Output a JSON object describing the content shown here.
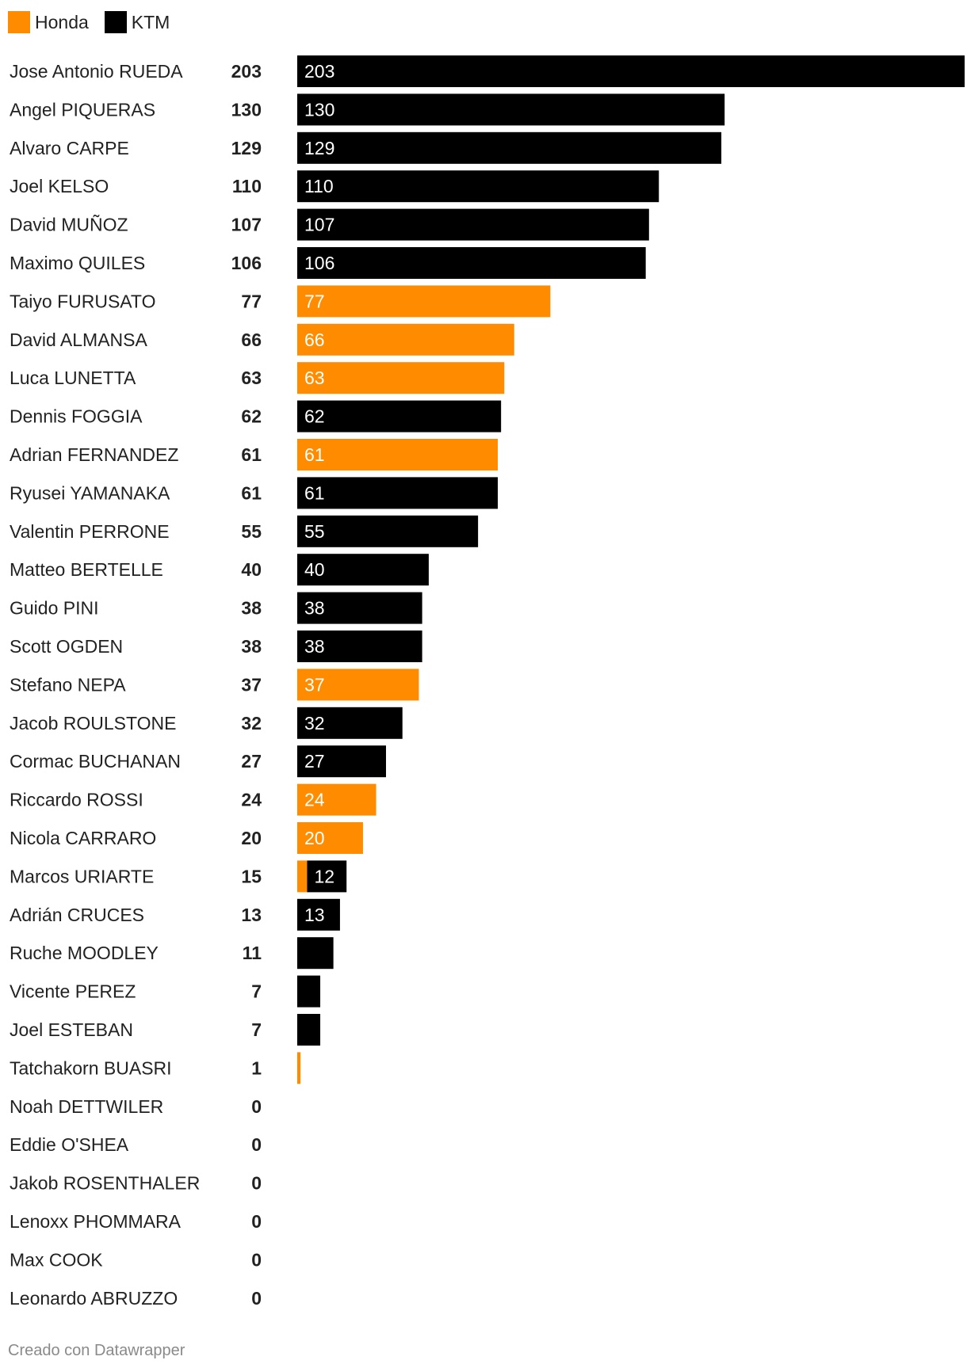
{
  "legend": [
    {
      "name": "Honda",
      "color": "#ff8c00"
    },
    {
      "name": "KTM",
      "color": "#000000"
    }
  ],
  "chart_data": {
    "type": "bar",
    "orientation": "horizontal",
    "stacked": true,
    "grid": false,
    "xlim": [
      0,
      203
    ],
    "series": [
      {
        "name": "Honda",
        "color": "#ff8c00"
      },
      {
        "name": "KTM",
        "color": "#000000"
      }
    ],
    "rows": [
      {
        "name": "Jose Antonio RUEDA",
        "total": "203",
        "segments": [
          {
            "series": "KTM",
            "value": 203,
            "label": "203"
          }
        ]
      },
      {
        "name": "Angel PIQUERAS",
        "total": "130",
        "segments": [
          {
            "series": "KTM",
            "value": 130,
            "label": "130"
          }
        ]
      },
      {
        "name": "Alvaro CARPE",
        "total": "129",
        "segments": [
          {
            "series": "KTM",
            "value": 129,
            "label": "129"
          }
        ]
      },
      {
        "name": "Joel KELSO",
        "total": "110",
        "segments": [
          {
            "series": "KTM",
            "value": 110,
            "label": "110"
          }
        ]
      },
      {
        "name": "David MUÑOZ",
        "total": "107",
        "segments": [
          {
            "series": "KTM",
            "value": 107,
            "label": "107"
          }
        ]
      },
      {
        "name": "Maximo QUILES",
        "total": "106",
        "segments": [
          {
            "series": "KTM",
            "value": 106,
            "label": "106"
          }
        ]
      },
      {
        "name": "Taiyo FURUSATO",
        "total": "77",
        "segments": [
          {
            "series": "Honda",
            "value": 77,
            "label": "77"
          }
        ]
      },
      {
        "name": "David ALMANSA",
        "total": "66",
        "segments": [
          {
            "series": "Honda",
            "value": 66,
            "label": "66"
          }
        ]
      },
      {
        "name": "Luca LUNETTA",
        "total": "63",
        "segments": [
          {
            "series": "Honda",
            "value": 63,
            "label": "63"
          }
        ]
      },
      {
        "name": "Dennis FOGGIA",
        "total": "62",
        "segments": [
          {
            "series": "KTM",
            "value": 62,
            "label": "62"
          }
        ]
      },
      {
        "name": "Adrian FERNANDEZ",
        "total": "61",
        "segments": [
          {
            "series": "Honda",
            "value": 61,
            "label": "61"
          }
        ]
      },
      {
        "name": "Ryusei YAMANAKA",
        "total": "61",
        "segments": [
          {
            "series": "KTM",
            "value": 61,
            "label": "61"
          }
        ]
      },
      {
        "name": "Valentin PERRONE",
        "total": "55",
        "segments": [
          {
            "series": "KTM",
            "value": 55,
            "label": "55"
          }
        ]
      },
      {
        "name": "Matteo BERTELLE",
        "total": "40",
        "segments": [
          {
            "series": "KTM",
            "value": 40,
            "label": "40"
          }
        ]
      },
      {
        "name": "Guido PINI",
        "total": "38",
        "segments": [
          {
            "series": "KTM",
            "value": 38,
            "label": "38"
          }
        ]
      },
      {
        "name": "Scott OGDEN",
        "total": "38",
        "segments": [
          {
            "series": "KTM",
            "value": 38,
            "label": "38"
          }
        ]
      },
      {
        "name": "Stefano NEPA",
        "total": "37",
        "segments": [
          {
            "series": "Honda",
            "value": 37,
            "label": "37"
          }
        ]
      },
      {
        "name": "Jacob ROULSTONE",
        "total": "32",
        "segments": [
          {
            "series": "KTM",
            "value": 32,
            "label": "32"
          }
        ]
      },
      {
        "name": "Cormac BUCHANAN",
        "total": "27",
        "segments": [
          {
            "series": "KTM",
            "value": 27,
            "label": "27"
          }
        ]
      },
      {
        "name": "Riccardo ROSSI",
        "total": "24",
        "segments": [
          {
            "series": "Honda",
            "value": 24,
            "label": "24"
          }
        ]
      },
      {
        "name": "Nicola CARRARO",
        "total": "20",
        "segments": [
          {
            "series": "Honda",
            "value": 20,
            "label": "20"
          }
        ]
      },
      {
        "name": "Marcos URIARTE",
        "total": "15",
        "segments": [
          {
            "series": "Honda",
            "value": 3,
            "label": ""
          },
          {
            "series": "KTM",
            "value": 12,
            "label": "12"
          }
        ]
      },
      {
        "name": "Adrián CRUCES",
        "total": "13",
        "segments": [
          {
            "series": "KTM",
            "value": 13,
            "label": "13"
          }
        ]
      },
      {
        "name": "Ruche MOODLEY",
        "total": "11",
        "segments": [
          {
            "series": "KTM",
            "value": 11,
            "label": ""
          }
        ]
      },
      {
        "name": "Vicente PEREZ",
        "total": "7",
        "segments": [
          {
            "series": "KTM",
            "value": 7,
            "label": ""
          }
        ]
      },
      {
        "name": "Joel ESTEBAN",
        "total": "7",
        "segments": [
          {
            "series": "KTM",
            "value": 7,
            "label": ""
          }
        ]
      },
      {
        "name": "Tatchakorn BUASRI",
        "total": "1",
        "segments": [
          {
            "series": "Honda",
            "value": 1,
            "label": ""
          }
        ]
      },
      {
        "name": "Noah DETTWILER",
        "total": "0",
        "segments": []
      },
      {
        "name": "Eddie O'SHEA",
        "total": "0",
        "segments": []
      },
      {
        "name": "Jakob ROSENTHALER",
        "total": "0",
        "segments": []
      },
      {
        "name": "Lenoxx PHOMMARA",
        "total": "0",
        "segments": []
      },
      {
        "name": "Max COOK",
        "total": "0",
        "segments": []
      },
      {
        "name": "Leonardo ABRUZZO",
        "total": "0",
        "segments": []
      }
    ]
  },
  "footer": {
    "credit": "Creado con Datawrapper"
  }
}
